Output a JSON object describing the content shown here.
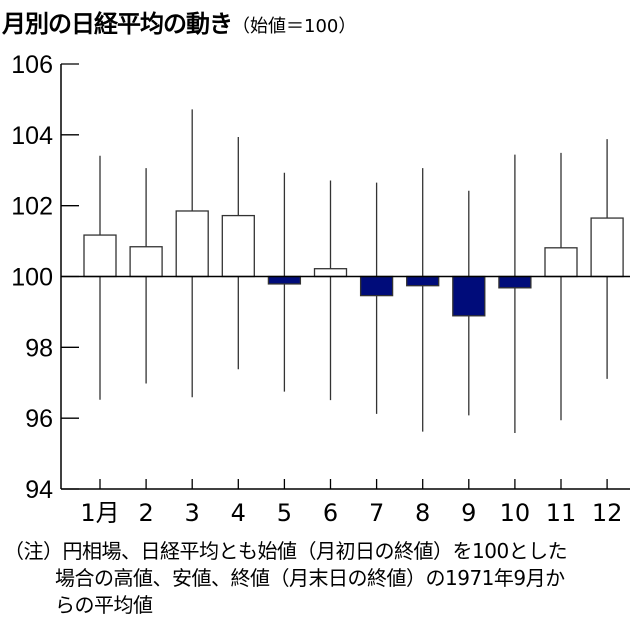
{
  "chart_data": {
    "type": "candlestick",
    "title": "月別の日経平均の動き",
    "subtitle": "（始値＝100）",
    "categories": [
      "1月",
      "2",
      "3",
      "4",
      "5",
      "6",
      "7",
      "8",
      "9",
      "10",
      "11",
      "12"
    ],
    "open": 100,
    "close": [
      101.17,
      100.84,
      101.85,
      101.72,
      99.79,
      100.22,
      99.46,
      99.74,
      98.89,
      99.68,
      100.81,
      101.65
    ],
    "high": [
      103.41,
      103.06,
      104.72,
      103.94,
      102.93,
      102.71,
      102.65,
      103.06,
      102.42,
      103.44,
      103.49,
      103.88
    ],
    "low": [
      96.52,
      96.98,
      96.59,
      97.38,
      96.75,
      96.51,
      96.12,
      95.62,
      96.08,
      95.58,
      95.94,
      97.11
    ],
    "ylim": [
      94,
      106
    ],
    "yticks": [
      94,
      96,
      98,
      100,
      102,
      104,
      106
    ],
    "xlabel": "",
    "ylabel": "",
    "grid": false,
    "colors": {
      "up": "#ffffff",
      "down": "#000c7a",
      "line": "#000000"
    }
  },
  "note": {
    "lines": [
      "（注）円相場、日経平均とも始値（月初日の終値）を100とした",
      "場合の高値、安値、終値（月末日の終値）の1971年9月か",
      "らの平均値"
    ]
  }
}
